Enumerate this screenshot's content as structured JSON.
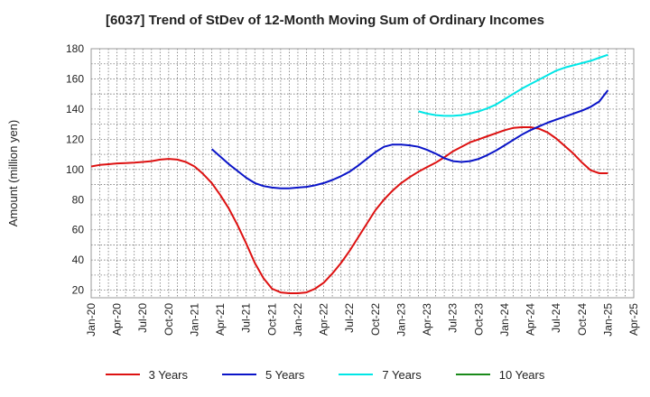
{
  "chart_data": {
    "type": "line",
    "title": "[6037]  Trend of StDev of 12-Month Moving Sum of Ordinary Incomes",
    "ylabel": "Amount (million yen)",
    "xlabel": "",
    "ylim": [
      15,
      180
    ],
    "yticks": [
      20,
      40,
      60,
      80,
      100,
      120,
      140,
      160,
      180
    ],
    "x_range": [
      "2020-01",
      "2025-04"
    ],
    "x_tick_labels": [
      "Jan-20",
      "Apr-20",
      "Jul-20",
      "Oct-20",
      "Jan-21",
      "Apr-21",
      "Jul-21",
      "Oct-21",
      "Jan-22",
      "Apr-22",
      "Jul-22",
      "Oct-22",
      "Jan-23",
      "Apr-23",
      "Jul-23",
      "Oct-23",
      "Jan-24",
      "Apr-24",
      "Jul-24",
      "Oct-24",
      "Jan-25",
      "Apr-25"
    ],
    "grid": true,
    "legend_position": "bottom",
    "series": [
      {
        "name": "3 Years",
        "color": "#dd1111",
        "points": [
          [
            "2020-01",
            102
          ],
          [
            "2020-02",
            103
          ],
          [
            "2020-03",
            103.5
          ],
          [
            "2020-04",
            104
          ],
          [
            "2020-05",
            104.2
          ],
          [
            "2020-06",
            104.5
          ],
          [
            "2020-07",
            105
          ],
          [
            "2020-08",
            105.5
          ],
          [
            "2020-09",
            106.5
          ],
          [
            "2020-10",
            107
          ],
          [
            "2020-11",
            106.5
          ],
          [
            "2020-12",
            105
          ],
          [
            "2021-01",
            102
          ],
          [
            "2021-02",
            97
          ],
          [
            "2021-03",
            91
          ],
          [
            "2021-04",
            83
          ],
          [
            "2021-05",
            74
          ],
          [
            "2021-06",
            63
          ],
          [
            "2021-07",
            51
          ],
          [
            "2021-08",
            38
          ],
          [
            "2021-09",
            28
          ],
          [
            "2021-10",
            21
          ],
          [
            "2021-11",
            18.5
          ],
          [
            "2021-12",
            18
          ],
          [
            "2022-01",
            18
          ],
          [
            "2022-02",
            18.5
          ],
          [
            "2022-03",
            21
          ],
          [
            "2022-04",
            25
          ],
          [
            "2022-05",
            31
          ],
          [
            "2022-06",
            38
          ],
          [
            "2022-07",
            46
          ],
          [
            "2022-08",
            55
          ],
          [
            "2022-09",
            64
          ],
          [
            "2022-10",
            73
          ],
          [
            "2022-11",
            80
          ],
          [
            "2022-12",
            86
          ],
          [
            "2023-01",
            91
          ],
          [
            "2023-02",
            95
          ],
          [
            "2023-03",
            98.5
          ],
          [
            "2023-04",
            101.5
          ],
          [
            "2023-05",
            104.5
          ],
          [
            "2023-06",
            108
          ],
          [
            "2023-07",
            112
          ],
          [
            "2023-08",
            115
          ],
          [
            "2023-09",
            118
          ],
          [
            "2023-10",
            120
          ],
          [
            "2023-11",
            122
          ],
          [
            "2023-12",
            124
          ],
          [
            "2024-01",
            126
          ],
          [
            "2024-02",
            127.5
          ],
          [
            "2024-03",
            128
          ],
          [
            "2024-04",
            128
          ],
          [
            "2024-05",
            127
          ],
          [
            "2024-06",
            124.5
          ],
          [
            "2024-07",
            120.5
          ],
          [
            "2024-08",
            115.5
          ],
          [
            "2024-09",
            110.5
          ],
          [
            "2024-10",
            104.5
          ],
          [
            "2024-11",
            99.5
          ],
          [
            "2024-12",
            97.5
          ],
          [
            "2025-01",
            97.5
          ]
        ]
      },
      {
        "name": "5 Years",
        "color": "#0a14c8",
        "points": [
          [
            "2021-03",
            113.5
          ],
          [
            "2021-04",
            108.5
          ],
          [
            "2021-05",
            103.5
          ],
          [
            "2021-06",
            99
          ],
          [
            "2021-07",
            94.5
          ],
          [
            "2021-08",
            91
          ],
          [
            "2021-09",
            89
          ],
          [
            "2021-10",
            88
          ],
          [
            "2021-11",
            87.5
          ],
          [
            "2021-12",
            87.5
          ],
          [
            "2022-01",
            88
          ],
          [
            "2022-02",
            88.5
          ],
          [
            "2022-03",
            89.5
          ],
          [
            "2022-04",
            91
          ],
          [
            "2022-05",
            93
          ],
          [
            "2022-06",
            95.5
          ],
          [
            "2022-07",
            98.5
          ],
          [
            "2022-08",
            102.5
          ],
          [
            "2022-09",
            107
          ],
          [
            "2022-10",
            111.5
          ],
          [
            "2022-11",
            115
          ],
          [
            "2022-12",
            116.5
          ],
          [
            "2023-01",
            116.5
          ],
          [
            "2023-02",
            116
          ],
          [
            "2023-03",
            115
          ],
          [
            "2023-04",
            113
          ],
          [
            "2023-05",
            110.5
          ],
          [
            "2023-06",
            107.5
          ],
          [
            "2023-07",
            105.5
          ],
          [
            "2023-08",
            105
          ],
          [
            "2023-09",
            105.5
          ],
          [
            "2023-10",
            107
          ],
          [
            "2023-11",
            109.5
          ],
          [
            "2023-12",
            112.5
          ],
          [
            "2024-01",
            116
          ],
          [
            "2024-02",
            119.5
          ],
          [
            "2024-03",
            123
          ],
          [
            "2024-04",
            126
          ],
          [
            "2024-05",
            128.5
          ],
          [
            "2024-06",
            131
          ],
          [
            "2024-07",
            133
          ],
          [
            "2024-08",
            135
          ],
          [
            "2024-09",
            137
          ],
          [
            "2024-10",
            139
          ],
          [
            "2024-11",
            141.5
          ],
          [
            "2024-12",
            145
          ],
          [
            "2025-01",
            152.5
          ]
        ]
      },
      {
        "name": "7 Years",
        "color": "#00e6e6",
        "points": [
          [
            "2023-03",
            138.5
          ],
          [
            "2023-04",
            137
          ],
          [
            "2023-05",
            136
          ],
          [
            "2023-06",
            135.5
          ],
          [
            "2023-07",
            135.5
          ],
          [
            "2023-08",
            136
          ],
          [
            "2023-09",
            137
          ],
          [
            "2023-10",
            138.5
          ],
          [
            "2023-11",
            140.5
          ],
          [
            "2023-12",
            143
          ],
          [
            "2024-01",
            146.5
          ],
          [
            "2024-02",
            150
          ],
          [
            "2024-03",
            153.5
          ],
          [
            "2024-04",
            156.5
          ],
          [
            "2024-05",
            159.5
          ],
          [
            "2024-06",
            162.5
          ],
          [
            "2024-07",
            165.5
          ],
          [
            "2024-08",
            167.5
          ],
          [
            "2024-09",
            169
          ],
          [
            "2024-10",
            170.5
          ],
          [
            "2024-11",
            172
          ],
          [
            "2024-12",
            174
          ],
          [
            "2025-01",
            176
          ]
        ]
      },
      {
        "name": "10 Years",
        "color": "#1a8a1a",
        "points": []
      }
    ]
  }
}
